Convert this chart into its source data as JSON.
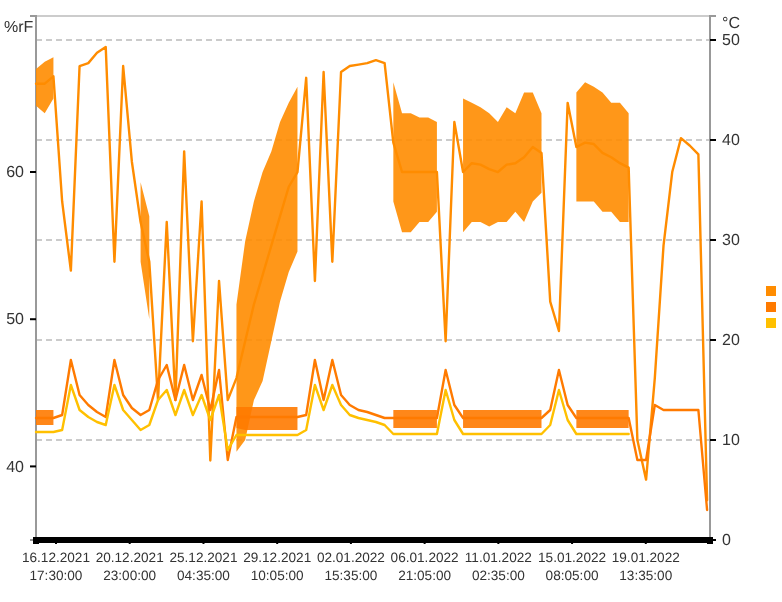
{
  "chart_data": {
    "type": "line",
    "ylabel": "%rF",
    "y2label": "°C",
    "x": [
      "2021-12-15T14:00",
      "2021-12-16T02:00",
      "2021-12-16T14:00",
      "2021-12-17T02:00",
      "2021-12-17T14:00",
      "2021-12-18T02:00",
      "2021-12-18T14:00",
      "2021-12-19T02:00",
      "2021-12-19T14:00",
      "2021-12-20T02:00",
      "2021-12-20T14:00",
      "2021-12-21T02:00",
      "2021-12-21T14:00",
      "2021-12-22T02:00",
      "2021-12-22T14:00",
      "2021-12-23T02:00",
      "2021-12-23T14:00",
      "2021-12-24T02:00",
      "2021-12-24T14:00",
      "2021-12-25T02:00",
      "2021-12-25T14:00",
      "2021-12-26T02:00",
      "2021-12-26T14:00",
      "2021-12-27T02:00",
      "2021-12-27T14:00",
      "2021-12-28T02:00",
      "2021-12-28T14:00",
      "2021-12-29T02:00",
      "2021-12-29T14:00",
      "2021-12-30T02:00",
      "2021-12-30T14:00",
      "2021-12-31T02:00",
      "2021-12-31T14:00",
      "2022-01-01T02:00",
      "2022-01-01T14:00",
      "2022-01-02T02:00",
      "2022-01-02T14:00",
      "2022-01-03T02:00",
      "2022-01-03T14:00",
      "2022-01-04T02:00",
      "2022-01-04T14:00",
      "2022-01-05T02:00",
      "2022-01-05T14:00",
      "2022-01-06T02:00",
      "2022-01-06T14:00",
      "2022-01-07T02:00",
      "2022-01-07T14:00",
      "2022-01-08T02:00",
      "2022-01-08T14:00",
      "2022-01-09T02:00",
      "2022-01-09T14:00",
      "2022-01-10T02:00",
      "2022-01-10T14:00",
      "2022-01-11T02:00",
      "2022-01-11T14:00",
      "2022-01-12T02:00",
      "2022-01-12T14:00",
      "2022-01-13T02:00",
      "2022-01-13T14:00",
      "2022-01-14T02:00",
      "2022-01-14T14:00",
      "2022-01-15T02:00",
      "2022-01-15T14:00",
      "2022-01-16T02:00",
      "2022-01-16T14:00",
      "2022-01-17T02:00",
      "2022-01-17T14:00",
      "2022-01-18T02:00",
      "2022-01-18T14:00",
      "2022-01-19T02:00",
      "2022-01-19T14:00",
      "2022-01-20T02:00",
      "2022-01-20T14:00",
      "2022-01-21T02:00",
      "2022-01-21T14:00",
      "2022-01-22T02:00",
      "2022-01-22T14:00",
      "2022-01-23T02:00"
    ],
    "xlim": [
      "2021-12-15T14:00",
      "2022-01-23T06:00"
    ],
    "xticks": [
      {
        "value": "2021-12-16T17:30",
        "label": "16.12.2021\n17:30:00"
      },
      {
        "value": "2021-12-20T23:00",
        "label": "20.12.2021\n23:00:00"
      },
      {
        "value": "2021-12-25T04:35",
        "label": "25.12.2021\n04:35:00"
      },
      {
        "value": "2021-12-29T10:05",
        "label": "29.12.2021\n10:05:00"
      },
      {
        "value": "2022-01-02T15:35",
        "label": "02.01.2022\n15:35:00"
      },
      {
        "value": "2022-01-06T21:05",
        "label": "06.01.2022\n21:05:00"
      },
      {
        "value": "2022-01-11T02:35",
        "label": "11.01.2022\n02:35:00"
      },
      {
        "value": "2022-01-15T08:05",
        "label": "15.01.2022\n08:05:00"
      },
      {
        "value": "2022-01-19T13:35",
        "label": "19.01.2022\n13:35:00"
      }
    ],
    "ylim": [
      35,
      70.6
    ],
    "yticks": [
      40,
      50,
      60
    ],
    "y2lim": [
      0,
      52.4
    ],
    "y2ticks": [
      0,
      10,
      20,
      30,
      40,
      50
    ],
    "grid": "y",
    "marker": "none",
    "line_style": "solid",
    "series": [
      {
        "color": "#ff8c00",
        "values": [
          66,
          66,
          66.5,
          58,
          53.3,
          67.2,
          67.4,
          68.1,
          68.5,
          53.9,
          67.2,
          60.7,
          56.6,
          53.9,
          44.5,
          56.6,
          44.5,
          61.4,
          48.5,
          58,
          40.4,
          52.6,
          44.5,
          46,
          48.5,
          51,
          53,
          55,
          57,
          59,
          60,
          66.4,
          52.6,
          66.8,
          53.9,
          66.8,
          67.2,
          67.3,
          67.4,
          67.6,
          67.4,
          62,
          60,
          60,
          60,
          60,
          60,
          48.5,
          63.4,
          60,
          60.6,
          60.5,
          60.2,
          60,
          60.5,
          60.6,
          61,
          61.7,
          61.3,
          51.2,
          49.2,
          64.7,
          61.7,
          62,
          61.9,
          61.3,
          61,
          60.6,
          60.3,
          41.8,
          39.1,
          46,
          55,
          60,
          62.3,
          61.8,
          61.2,
          37.7
        ],
        "lower": [
          64.5,
          64,
          65,
          null,
          null,
          null,
          null,
          null,
          null,
          null,
          null,
          null,
          53.9,
          50,
          null,
          null,
          null,
          null,
          null,
          null,
          null,
          null,
          null,
          41,
          41.8,
          44.5,
          45.8,
          48.5,
          51.2,
          53.2,
          54.6,
          null,
          null,
          null,
          null,
          null,
          null,
          null,
          null,
          null,
          null,
          58,
          55.9,
          55.9,
          56.6,
          56.6,
          57.3,
          null,
          null,
          55.9,
          56.6,
          56.6,
          56.3,
          56.6,
          56.6,
          57.3,
          56.6,
          58,
          58.6,
          null,
          null,
          null,
          58,
          58,
          58,
          57.3,
          57.3,
          56.6,
          56.6,
          null,
          null,
          null,
          null,
          null,
          null,
          null,
          null,
          null
        ],
        "upper": [
          67,
          67.5,
          67.8,
          null,
          null,
          null,
          null,
          null,
          null,
          null,
          null,
          null,
          59.3,
          57,
          null,
          null,
          null,
          null,
          null,
          null,
          null,
          null,
          null,
          51,
          55.3,
          58,
          60,
          61.4,
          63.4,
          64.7,
          65.8,
          null,
          null,
          null,
          null,
          null,
          null,
          null,
          null,
          null,
          null,
          66.1,
          64,
          64,
          63.7,
          63.7,
          63.4,
          null,
          null,
          65,
          64.7,
          64.4,
          64,
          63.4,
          64.4,
          64,
          65.4,
          65.4,
          64,
          null,
          null,
          null,
          65.4,
          66.1,
          65.8,
          65.4,
          64.7,
          64.7,
          64,
          null,
          null,
          null,
          null,
          null,
          null,
          null,
          null,
          null
        ]
      },
      {
        "color": "#ff7a00",
        "axis": "y2",
        "values": [
          12.2,
          12.2,
          12.2,
          12.5,
          18,
          14.5,
          13.5,
          12.8,
          12.3,
          18,
          14.5,
          13.2,
          12.5,
          13,
          16,
          17.5,
          14,
          17.5,
          14,
          16.5,
          13,
          17,
          8,
          12.3,
          12.3,
          12.3,
          12.3,
          12.3,
          12.3,
          12.3,
          12.3,
          12.5,
          18,
          14,
          18,
          14.5,
          13.5,
          13,
          12.8,
          12.5,
          12.2,
          12.2,
          12.2,
          12.2,
          12.2,
          12.2,
          12.2,
          17,
          13.5,
          12.2,
          12.2,
          12.2,
          12.2,
          12.2,
          12.2,
          12.2,
          12.2,
          12.2,
          12.2,
          13,
          17,
          13.5,
          12.2,
          12.2,
          12.2,
          12.2,
          12.2,
          12.2,
          12.2,
          8,
          8,
          13.5,
          13,
          13,
          13,
          13,
          13,
          3
        ],
        "lower": [
          11.5,
          11.5,
          11.5,
          null,
          null,
          null,
          null,
          null,
          null,
          null,
          null,
          null,
          null,
          null,
          null,
          null,
          null,
          null,
          null,
          null,
          null,
          null,
          null,
          11.2,
          11,
          11,
          11,
          11,
          11,
          11,
          11,
          null,
          null,
          null,
          null,
          null,
          null,
          null,
          null,
          null,
          null,
          11.2,
          11.2,
          11.2,
          11.2,
          11.2,
          11.2,
          null,
          null,
          11.2,
          11.2,
          11.2,
          11.2,
          11.2,
          11.2,
          11.2,
          11.2,
          11.2,
          11.2,
          null,
          null,
          null,
          11.2,
          11.2,
          11.2,
          11.2,
          11.2,
          11.2,
          11.2,
          null,
          null,
          null,
          null,
          null,
          null,
          null,
          null,
          null
        ],
        "upper": [
          13,
          13,
          13,
          null,
          null,
          null,
          null,
          null,
          null,
          null,
          null,
          null,
          null,
          null,
          null,
          null,
          null,
          null,
          null,
          null,
          null,
          null,
          null,
          13.3,
          13.3,
          13.3,
          13.3,
          13.3,
          13.3,
          13.3,
          13.3,
          null,
          null,
          null,
          null,
          null,
          null,
          null,
          null,
          null,
          null,
          13,
          13,
          13,
          13,
          13,
          13,
          null,
          null,
          13,
          13,
          13,
          13,
          13,
          13,
          13,
          13,
          13,
          13,
          null,
          null,
          null,
          13,
          13,
          13,
          13,
          13,
          13,
          13,
          null,
          null,
          null,
          null,
          null,
          null,
          null,
          null,
          null
        ]
      },
      {
        "color": "#ffc000",
        "axis": "y2",
        "values": [
          10.8,
          10.8,
          10.8,
          11,
          15.5,
          13,
          12.3,
          11.8,
          11.5,
          15.5,
          13,
          12,
          11,
          11.5,
          14,
          15,
          12.5,
          15,
          12.5,
          14.5,
          12,
          14.5,
          9,
          10.5,
          10.5,
          10.5,
          10.5,
          10.5,
          10.5,
          10.5,
          10.5,
          11,
          15.5,
          13,
          15.5,
          13.5,
          12.5,
          12.2,
          12,
          11.8,
          11.5,
          10.6,
          10.6,
          10.6,
          10.6,
          10.6,
          10.6,
          15,
          12,
          10.6,
          10.6,
          10.6,
          10.6,
          10.6,
          10.6,
          10.6,
          10.6,
          10.6,
          10.6,
          11.5,
          15,
          12,
          10.6,
          10.6,
          10.6,
          10.6,
          10.6,
          10.6,
          10.6,
          null,
          null,
          null,
          null,
          null,
          null,
          null,
          null,
          null
        ]
      }
    ]
  }
}
